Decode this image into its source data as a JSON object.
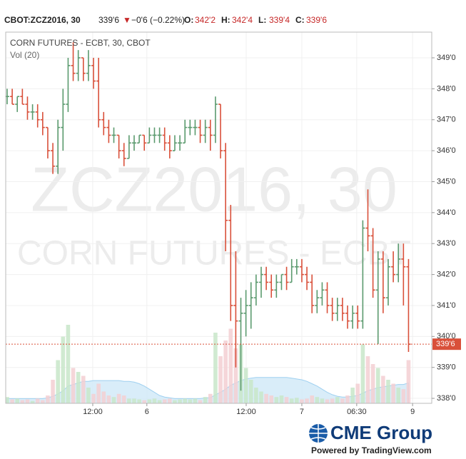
{
  "header": {
    "symbol": "CBOT:ZCZ2016, 30",
    "last": "339'6",
    "arrow": "▼",
    "change": "−0'6 (−0.22%)",
    "ohlc": [
      {
        "label": "O:",
        "value": "342'2"
      },
      {
        "label": "H:",
        "value": "342'4"
      },
      {
        "label": "L:",
        "value": "339'4"
      },
      {
        "label": "C:",
        "value": "339'6"
      }
    ]
  },
  "chart_data": {
    "type": "ohlc",
    "title": "CORN FUTURES - ECBT, 30, CBOT",
    "volume_label": "Vol (20)",
    "watermark": [
      "ZCZ2016, 30",
      "CORN FUTURES - ECBT"
    ],
    "up_color": "#5b9a6e",
    "down_color": "#d9503a",
    "vol_up_color": "#c8e6c9",
    "vol_down_color": "#f3cfd2",
    "vol_ma_color": "#cfe8f8",
    "grid": true,
    "ylim": [
      337.84,
      349.83
    ],
    "yticks": [
      {
        "value": 338,
        "label": "338'0"
      },
      {
        "value": 339,
        "label": "339'0"
      },
      {
        "value": 340,
        "label": "340'0"
      },
      {
        "value": 341,
        "label": "341'0"
      },
      {
        "value": 342,
        "label": "342'0"
      },
      {
        "value": 343,
        "label": "343'0"
      },
      {
        "value": 344,
        "label": "344'0"
      },
      {
        "value": 345,
        "label": "345'0"
      },
      {
        "value": 346,
        "label": "346'0"
      },
      {
        "value": 347,
        "label": "347'0"
      },
      {
        "value": 348,
        "label": "348'0"
      },
      {
        "value": 349,
        "label": "349'0"
      }
    ],
    "xlim": [
      -0.28,
      83.57
    ],
    "xticks": [
      {
        "value": 16.85,
        "label": "12:00"
      },
      {
        "value": 27.5,
        "label": "6"
      },
      {
        "value": 47.05,
        "label": "12:00"
      },
      {
        "value": 58,
        "label": "7"
      },
      {
        "value": 68.8,
        "label": "06:30"
      },
      {
        "value": 79.8,
        "label": "9"
      }
    ],
    "last_price": {
      "value": 339.75,
      "label": "339'6"
    },
    "open": [
      347.75,
      347.75,
      347.5,
      347.75,
      347.5,
      347.25,
      347.25,
      347,
      346.75,
      346,
      345.5,
      346.75,
      347.5,
      348.75,
      348.5,
      349,
      348.5,
      348.75,
      348.25,
      347,
      346.75,
      346.5,
      346.5,
      346,
      345.75,
      346.25,
      346.25,
      346.5,
      346.25,
      346.5,
      346.5,
      346.5,
      346.25,
      346,
      346.25,
      346.25,
      346.75,
      346.75,
      346.75,
      346.5,
      346.75,
      346.5,
      347.5,
      346,
      343.75,
      341,
      340.5,
      340.75,
      341,
      341.25,
      341.75,
      342,
      341.75,
      341.5,
      341.75,
      342,
      341.75,
      342.25,
      342.25,
      342,
      341.75,
      341,
      341.25,
      341.5,
      341,
      340.75,
      341,
      340.75,
      340.5,
      340.75,
      340.5,
      343.5,
      343.25,
      341.5,
      342.5,
      341.25,
      342.25,
      342,
      342.5,
      342.25
    ],
    "high": [
      348,
      348,
      347.75,
      348,
      347.75,
      347.5,
      347.5,
      347.25,
      346.75,
      346.25,
      347,
      348,
      349,
      349.5,
      349.25,
      349,
      349.25,
      349,
      349,
      347.25,
      347,
      346.75,
      346.5,
      346.25,
      346.5,
      346.5,
      346.5,
      346.5,
      346.75,
      346.75,
      346.75,
      346.75,
      346.5,
      346.5,
      346.5,
      347,
      347,
      347,
      347,
      347,
      347,
      347.75,
      347.5,
      346.25,
      344.25,
      342.75,
      341.25,
      341.5,
      341.75,
      342,
      342.25,
      342.25,
      342,
      342,
      342,
      342.25,
      342.5,
      342.5,
      342.5,
      342.25,
      342,
      341.5,
      341.75,
      341.75,
      341.25,
      341.25,
      341.25,
      341,
      341,
      341,
      343.75,
      344.75,
      343.5,
      342.75,
      342.75,
      342.5,
      342.75,
      343,
      343,
      342.5
    ],
    "low": [
      347.5,
      347.5,
      347.25,
      347.5,
      347,
      347,
      346.75,
      346.5,
      345.75,
      345.25,
      345.25,
      346,
      347.25,
      348.25,
      348.25,
      348.25,
      348.25,
      348,
      346.75,
      346.5,
      346.25,
      346.25,
      345.75,
      345.5,
      345.75,
      346,
      346.25,
      346,
      346.25,
      346.25,
      346.25,
      346,
      345.75,
      346,
      346,
      346.25,
      346.5,
      346.5,
      346.25,
      346.25,
      346,
      346.25,
      345.75,
      342.75,
      340.5,
      339,
      338.25,
      340,
      340.25,
      341,
      341.25,
      341.5,
      341.25,
      341.25,
      341.5,
      341.5,
      341.75,
      342,
      341.75,
      341.5,
      340.75,
      340.75,
      341,
      340.75,
      340.5,
      340.5,
      340.5,
      340.25,
      340.25,
      340.25,
      340.25,
      342.75,
      341.25,
      339.75,
      340.75,
      341,
      341.75,
      341.75,
      341,
      339.5
    ],
    "close": [
      347.75,
      347.5,
      347.75,
      347.5,
      347.25,
      347.25,
      347,
      346.75,
      346,
      345.5,
      346.75,
      347.5,
      348.75,
      348.5,
      349,
      348.5,
      348.75,
      348.25,
      347,
      346.75,
      346.5,
      346.5,
      346,
      345.75,
      346.25,
      346.25,
      346.5,
      346.25,
      346.5,
      346.5,
      346.5,
      346.25,
      346,
      346.25,
      346.25,
      346.75,
      346.75,
      346.75,
      346.5,
      346.75,
      346.5,
      347.5,
      346,
      343.75,
      341,
      340.5,
      340.75,
      341,
      341.25,
      341.75,
      342,
      341.75,
      341.5,
      341.75,
      342,
      341.75,
      342.25,
      342.25,
      342,
      341.75,
      341,
      341.25,
      341.5,
      341,
      340.75,
      341,
      340.75,
      340.5,
      340.75,
      340.5,
      343.5,
      343.25,
      341.5,
      342.5,
      341.25,
      342.25,
      342,
      342.5,
      342.25,
      339.75
    ],
    "volume": [
      8,
      5,
      6,
      4,
      5,
      3,
      6,
      4,
      10,
      30,
      55,
      85,
      100,
      45,
      40,
      35,
      20,
      12,
      25,
      15,
      10,
      8,
      12,
      10,
      6,
      6,
      5,
      4,
      5,
      6,
      4,
      5,
      6,
      4,
      5,
      6,
      5,
      6,
      4,
      8,
      12,
      90,
      60,
      80,
      95,
      70,
      75,
      45,
      30,
      20,
      15,
      12,
      10,
      8,
      10,
      8,
      6,
      7,
      5,
      6,
      10,
      8,
      6,
      5,
      6,
      8,
      6,
      10,
      20,
      25,
      75,
      60,
      50,
      45,
      35,
      30,
      25,
      20,
      18,
      55
    ],
    "vol_ma": [
      6,
      6,
      6,
      6,
      6,
      6,
      6,
      6,
      7,
      9,
      12,
      16,
      22,
      24,
      26,
      28,
      28,
      29,
      29,
      29,
      29,
      29,
      29,
      28,
      28,
      27,
      25,
      22,
      18,
      14,
      10,
      8,
      7,
      6,
      6,
      6,
      6,
      6,
      6,
      7,
      7,
      11,
      14,
      18,
      23,
      26,
      29,
      31,
      32,
      33,
      33,
      33,
      33,
      33,
      33,
      33,
      32,
      31,
      30,
      28,
      25,
      22,
      18,
      14,
      11,
      9,
      8,
      8,
      9,
      10,
      13,
      16,
      18,
      20,
      21,
      22,
      23,
      24,
      24,
      26
    ]
  },
  "footer": {
    "brand": "CME Group",
    "powered": "Powered by TradingView.com"
  }
}
